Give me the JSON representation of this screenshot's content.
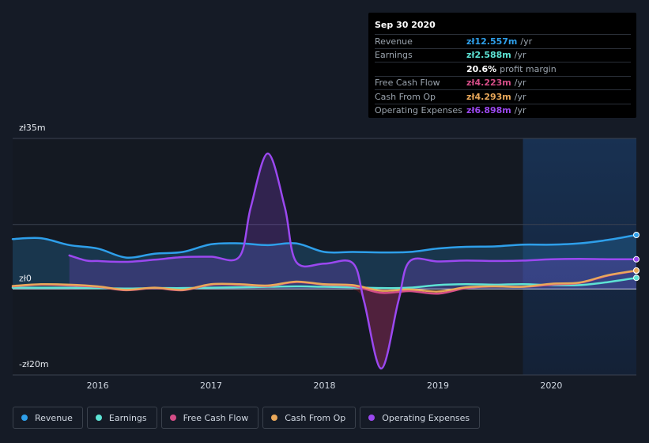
{
  "chart_data": {
    "type": "area",
    "currency_prefix": "zł",
    "y_axis": {
      "top_label": "zł35m",
      "zero_label": "zł0",
      "bottom_label": "-zł20m",
      "ylim": [
        -20,
        35
      ]
    },
    "x_axis": {
      "ticks": [
        "2016",
        "2017",
        "2018",
        "2019",
        "2020"
      ],
      "xlim": [
        2015.25,
        2020.75
      ]
    },
    "forecast_shade_start": 2019.75,
    "series": [
      {
        "name": "Revenue",
        "color": "#2e9fea",
        "start": 2015.25,
        "x": [
          2015.25,
          2015.5,
          2015.75,
          2016,
          2016.25,
          2016.5,
          2016.75,
          2017,
          2017.25,
          2017.5,
          2017.75,
          2018,
          2018.25,
          2018.5,
          2018.75,
          2019,
          2019.25,
          2019.5,
          2019.75,
          2020,
          2020.25,
          2020.5,
          2020.75
        ],
        "values": [
          11.6,
          11.8,
          10.2,
          9.4,
          7.3,
          8.2,
          8.6,
          10.4,
          10.6,
          10.2,
          10.6,
          8.6,
          8.6,
          8.5,
          8.6,
          9.4,
          9.8,
          9.9,
          10.3,
          10.3,
          10.6,
          11.4,
          12.557
        ]
      },
      {
        "name": "Earnings",
        "color": "#5de3d4",
        "start": 2015.25,
        "x": [
          2015.25,
          2015.5,
          2015.75,
          2016,
          2016.25,
          2016.5,
          2016.75,
          2017,
          2017.25,
          2017.5,
          2017.75,
          2018,
          2018.25,
          2018.5,
          2018.75,
          2019,
          2019.25,
          2019.5,
          2019.75,
          2020,
          2020.25,
          2020.5,
          2020.75
        ],
        "values": [
          0.3,
          0.3,
          0.3,
          0.2,
          0.1,
          0.2,
          0.2,
          0.3,
          0.4,
          0.5,
          0.6,
          0.5,
          0.4,
          0.2,
          0.3,
          0.9,
          1.1,
          1.0,
          1.1,
          0.9,
          0.9,
          1.6,
          2.588
        ]
      },
      {
        "name": "Free Cash Flow",
        "color": "#d44d87",
        "start": 2015.25,
        "x": [
          2015.25,
          2015.5,
          2015.75,
          2016,
          2016.25,
          2016.5,
          2016.75,
          2017,
          2017.25,
          2017.5,
          2017.75,
          2018,
          2018.25,
          2018.5,
          2018.75,
          2019,
          2019.25,
          2019.5,
          2019.75,
          2020,
          2020.25,
          2020.5,
          2020.75
        ],
        "values": [
          0.6,
          1.0,
          0.8,
          0.5,
          -0.3,
          0.2,
          -0.3,
          1.0,
          1.0,
          0.7,
          1.6,
          1.0,
          0.7,
          -0.9,
          -0.5,
          -1.1,
          0.2,
          0.6,
          0.5,
          1.0,
          1.4,
          3.1,
          4.223
        ]
      },
      {
        "name": "Cash From Op",
        "color": "#e9a85a",
        "start": 2015.25,
        "x": [
          2015.25,
          2015.5,
          2015.75,
          2016,
          2016.25,
          2016.5,
          2016.75,
          2017,
          2017.25,
          2017.5,
          2017.75,
          2018,
          2018.25,
          2018.5,
          2018.75,
          2019,
          2019.25,
          2019.5,
          2019.75,
          2020,
          2020.25,
          2020.5,
          2020.75
        ],
        "values": [
          0.7,
          1.1,
          1.0,
          0.6,
          -0.2,
          0.3,
          -0.2,
          1.1,
          1.1,
          0.8,
          1.7,
          1.1,
          0.9,
          -0.4,
          -0.1,
          -0.6,
          0.4,
          0.6,
          0.5,
          1.2,
          1.5,
          3.2,
          4.293
        ]
      },
      {
        "name": "Operating Expenses",
        "color": "#9b48f0",
        "start": 2015.75,
        "x": [
          2015.75,
          2015.9,
          2016,
          2016.25,
          2016.5,
          2016.75,
          2017,
          2017.25,
          2017.35,
          2017.5,
          2017.65,
          2017.75,
          2018,
          2018.25,
          2018.35,
          2018.5,
          2018.65,
          2018.75,
          2019,
          2019.25,
          2019.5,
          2019.75,
          2020,
          2020.25,
          2020.5,
          2020.75
        ],
        "values": [
          7.8,
          6.6,
          6.5,
          6.3,
          6.8,
          7.4,
          7.5,
          7.5,
          19,
          31.5,
          19,
          6.3,
          5.9,
          6.0,
          -3,
          -18.5,
          -3,
          6.4,
          6.4,
          6.6,
          6.5,
          6.6,
          6.9,
          7.0,
          6.9,
          6.898
        ]
      }
    ]
  },
  "tooltip": {
    "date": "Sep 30 2020",
    "rows": [
      {
        "label": "Revenue",
        "value": "zł12.557m",
        "suffix": "/yr",
        "color": "#2e9fea"
      },
      {
        "label": "Earnings",
        "value": "zł2.588m",
        "suffix": "/yr",
        "color": "#5de3d4"
      },
      {
        "label": "",
        "value": "20.6%",
        "suffix": "profit margin",
        "color": "#ffffff"
      },
      {
        "label": "Free Cash Flow",
        "value": "zł4.223m",
        "suffix": "/yr",
        "color": "#d44d87"
      },
      {
        "label": "Cash From Op",
        "value": "zł4.293m",
        "suffix": "/yr",
        "color": "#e9a85a"
      },
      {
        "label": "Operating Expenses",
        "value": "zł6.898m",
        "suffix": "/yr",
        "color": "#9b48f0"
      }
    ]
  },
  "legend": [
    {
      "label": "Revenue",
      "color": "#2e9fea"
    },
    {
      "label": "Earnings",
      "color": "#5de3d4"
    },
    {
      "label": "Free Cash Flow",
      "color": "#d44d87"
    },
    {
      "label": "Cash From Op",
      "color": "#e9a85a"
    },
    {
      "label": "Operating Expenses",
      "color": "#9b48f0"
    }
  ]
}
